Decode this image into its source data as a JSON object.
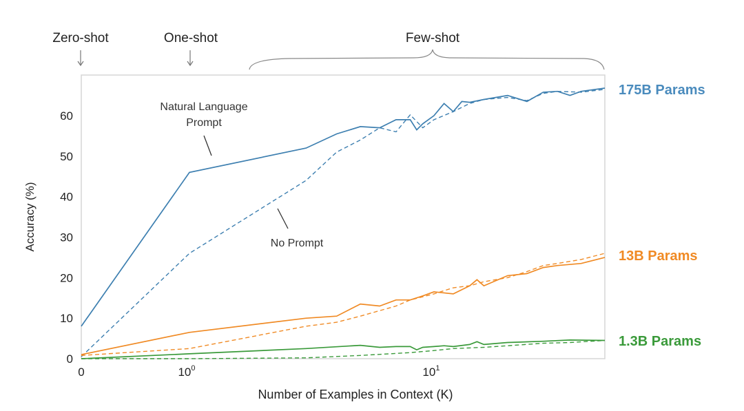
{
  "chart_data": {
    "type": "line",
    "title": "",
    "xlabel": "Number of Examples in Context  (K)",
    "ylabel": "Accuracy (%)",
    "xscale": "symlog",
    "xlim": [
      0,
      50
    ],
    "ylim": [
      0,
      70
    ],
    "grid": false,
    "x_ticks": [
      {
        "value": 0,
        "label": "0"
      },
      {
        "value": 1,
        "label": "10",
        "exp": "0"
      },
      {
        "value": 10,
        "label": "10",
        "exp": "1"
      }
    ],
    "y_ticks": [
      0,
      10,
      20,
      30,
      40,
      50,
      60
    ],
    "regions": [
      {
        "label": "Zero-shot",
        "marker": "arrow",
        "k": 0
      },
      {
        "label": "One-shot",
        "marker": "arrow",
        "k": 1
      },
      {
        "label": "Few-shot",
        "marker": "brace",
        "k_range": [
          2,
          50
        ]
      }
    ],
    "annotations": [
      {
        "text": [
          "Natural Language",
          "Prompt"
        ]
      },
      {
        "text": [
          "No Prompt"
        ]
      }
    ],
    "groups": [
      {
        "label": "175B Params",
        "color": "#3d7fb0",
        "label_color": "#4a8bbd",
        "series": [
          {
            "style": "solid",
            "points": [
              [
                0,
                8
              ],
              [
                1,
                46
              ],
              [
                3,
                52
              ],
              [
                4,
                55.5
              ],
              [
                5,
                57.3
              ],
              [
                6,
                57
              ],
              [
                7,
                59
              ],
              [
                8,
                59
              ],
              [
                8.5,
                56.5
              ],
              [
                9,
                58
              ],
              [
                10,
                60
              ],
              [
                11,
                63
              ],
              [
                12,
                61
              ],
              [
                13,
                63.5
              ],
              [
                14,
                63.3
              ],
              [
                16,
                64
              ],
              [
                20,
                65
              ],
              [
                24,
                63.5
              ],
              [
                28,
                65.8
              ],
              [
                32,
                66
              ],
              [
                36,
                65
              ],
              [
                40,
                66
              ],
              [
                50,
                66.8
              ]
            ]
          },
          {
            "style": "dashed",
            "points": [
              [
                0,
                0.5
              ],
              [
                1,
                26
              ],
              [
                3,
                44
              ],
              [
                4,
                51
              ],
              [
                5,
                54
              ],
              [
                6,
                57
              ],
              [
                7,
                56
              ],
              [
                8,
                60.2
              ],
              [
                9,
                57
              ],
              [
                10,
                59
              ],
              [
                12,
                61
              ],
              [
                14,
                63
              ],
              [
                16,
                64
              ],
              [
                20,
                64.5
              ],
              [
                24,
                63.7
              ],
              [
                28,
                65.5
              ],
              [
                32,
                66
              ],
              [
                40,
                65.8
              ],
              [
                50,
                66.5
              ]
            ]
          }
        ]
      },
      {
        "label": "13B Params",
        "color": "#f08a24",
        "label_color": "#f08a24",
        "series": [
          {
            "style": "solid",
            "points": [
              [
                0,
                1
              ],
              [
                1,
                6.5
              ],
              [
                3,
                10
              ],
              [
                4,
                10.5
              ],
              [
                5,
                13.5
              ],
              [
                6,
                13
              ],
              [
                7,
                14.5
              ],
              [
                8,
                14.5
              ],
              [
                9,
                15.5
              ],
              [
                10,
                16.5
              ],
              [
                12,
                16
              ],
              [
                14,
                18
              ],
              [
                15,
                19.5
              ],
              [
                16,
                18
              ],
              [
                20,
                20.5
              ],
              [
                24,
                21
              ],
              [
                28,
                22.5
              ],
              [
                32,
                23
              ],
              [
                40,
                23.5
              ],
              [
                50,
                25
              ]
            ]
          },
          {
            "style": "dashed",
            "points": [
              [
                0,
                0.8
              ],
              [
                1,
                2.5
              ],
              [
                3,
                8
              ],
              [
                4,
                9
              ],
              [
                5,
                10.5
              ],
              [
                7,
                13
              ],
              [
                8,
                14.5
              ],
              [
                10,
                16
              ],
              [
                12,
                17.5
              ],
              [
                14,
                18
              ],
              [
                16,
                19
              ],
              [
                20,
                20
              ],
              [
                24,
                21.5
              ],
              [
                28,
                23
              ],
              [
                32,
                23.5
              ],
              [
                40,
                24.5
              ],
              [
                50,
                26
              ]
            ]
          }
        ]
      },
      {
        "label": "1.3B Params",
        "color": "#3a9a3a",
        "label_color": "#3a9a3a",
        "series": [
          {
            "style": "solid",
            "points": [
              [
                0,
                0
              ],
              [
                1,
                1.2
              ],
              [
                3,
                2.5
              ],
              [
                5,
                3.3
              ],
              [
                6,
                2.8
              ],
              [
                7,
                3
              ],
              [
                8,
                3
              ],
              [
                8.5,
                2.2
              ],
              [
                9,
                2.8
              ],
              [
                10,
                3
              ],
              [
                11,
                3.2
              ],
              [
                12,
                3
              ],
              [
                14,
                3.5
              ],
              [
                15,
                4.2
              ],
              [
                16,
                3.5
              ],
              [
                20,
                4
              ],
              [
                28,
                4.3
              ],
              [
                36,
                4.6
              ],
              [
                50,
                4.5
              ]
            ]
          },
          {
            "style": "dashed",
            "points": [
              [
                0,
                0
              ],
              [
                1,
                0
              ],
              [
                3,
                0.2
              ],
              [
                5,
                0.8
              ],
              [
                8,
                1.5
              ],
              [
                10,
                2
              ],
              [
                12,
                2.5
              ],
              [
                16,
                2.8
              ],
              [
                20,
                3.2
              ],
              [
                28,
                3.8
              ],
              [
                36,
                4
              ],
              [
                50,
                4.5
              ]
            ]
          }
        ]
      }
    ]
  }
}
